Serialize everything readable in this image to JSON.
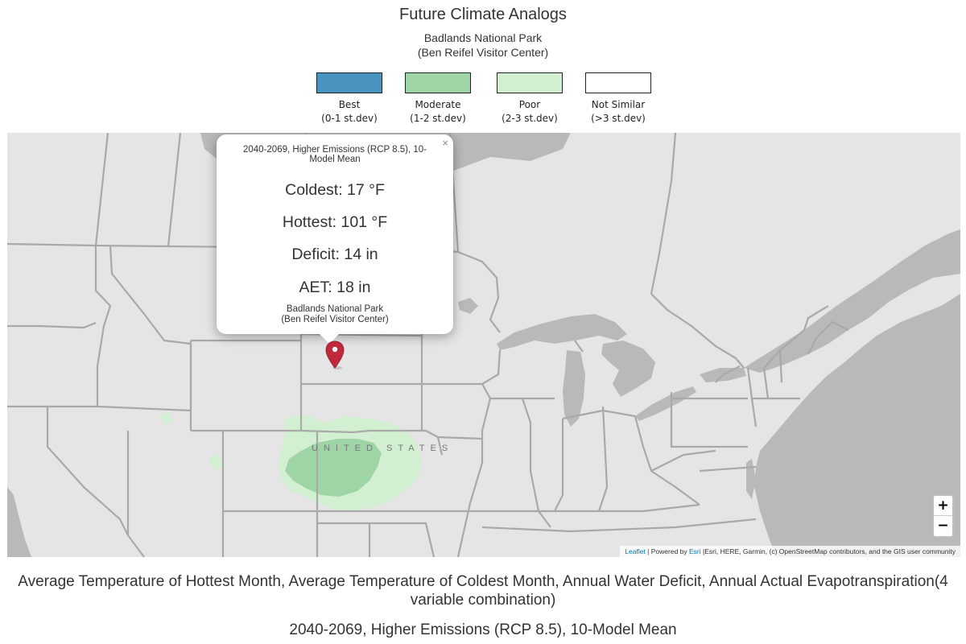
{
  "header": {
    "title": "Future Climate Analogs",
    "subtitle_line1": "Badlands National Park",
    "subtitle_line2": "(Ben Reifel Visitor Center)"
  },
  "legend": [
    {
      "label": "Best",
      "range": "(0-1 st.dev)",
      "color": "#4893c0"
    },
    {
      "label": "Moderate",
      "range": "(1-2 st.dev)",
      "color": "#9fd5a6"
    },
    {
      "label": "Poor",
      "range": "(2-3 st.dev)",
      "color": "#d3efd1"
    },
    {
      "label": "Not Similar",
      "range": "(>3 st.dev)",
      "color": "#ffffff"
    }
  ],
  "popup": {
    "heading": "2040-2069, Higher Emissions (RCP 8.5), 10-Model Mean",
    "coldest": "Coldest: 17 °F",
    "hottest": "Hottest: 101 °F",
    "deficit": "Deficit: 14 in",
    "aet": "AET: 18 in",
    "site_line1": "Badlands National Park",
    "site_line2": "(Ben Reifel Visitor Center)",
    "close_symbol": "×"
  },
  "map": {
    "country_label": "UNITED STATES",
    "land_color": "#e5e5e5",
    "water_color": "#b9b9b9",
    "border_color": "#a9a9a9",
    "marker_color": "#c0283c",
    "icons": [
      "map-marker-icon",
      "close-icon"
    ],
    "zoom_in": "+",
    "zoom_out": "−"
  },
  "attribution": {
    "leaflet": "Leaflet",
    "separator": " | Powered by ",
    "esri": "Esri",
    "rest": " |Esri, HERE, Garmin, (c) OpenStreetMap contributors, and the GIS user community"
  },
  "captions": {
    "variables": "Average Temperature of Hottest Month, Average Temperature of Coldest Month, Annual Water Deficit, Annual Actual Evapotranspiration(4 variable combination)",
    "scenario": "2040-2069, Higher Emissions (RCP 8.5), 10-Model Mean"
  }
}
